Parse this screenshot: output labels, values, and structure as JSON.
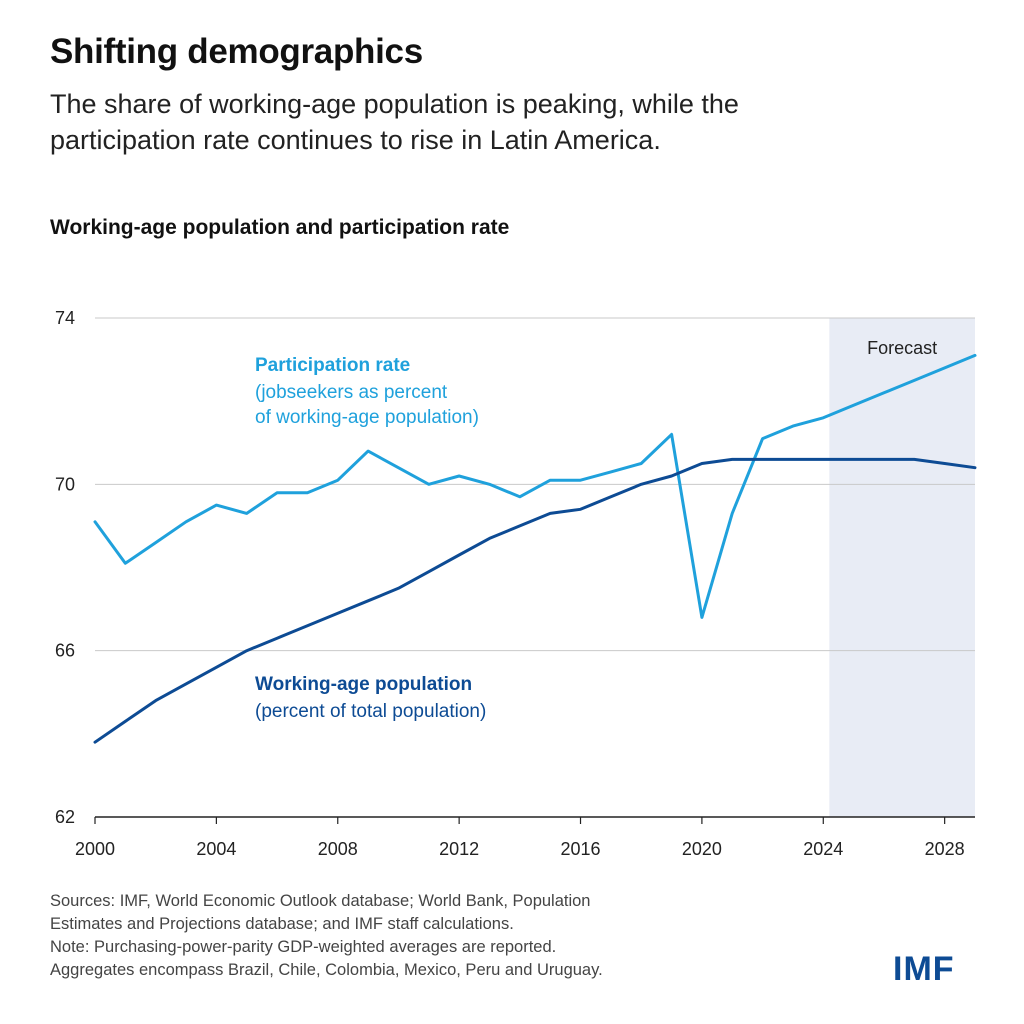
{
  "header": {
    "title": "Shifting demographics",
    "subtitle_line1": "The share of working-age population is peaking, while the",
    "subtitle_line2": "participation rate continues to rise in Latin America."
  },
  "chart_data": {
    "type": "line",
    "title": "Working-age population and participation rate",
    "xlabel": "",
    "ylabel": "",
    "xlim": [
      2000,
      2029
    ],
    "ylim": [
      62,
      74
    ],
    "x_ticks": [
      2000,
      2004,
      2008,
      2012,
      2016,
      2020,
      2024,
      2028
    ],
    "y_ticks": [
      62,
      66,
      70,
      74
    ],
    "grid": true,
    "forecast": {
      "label": "Forecast",
      "start": 2024.2,
      "end": 2029
    },
    "x": [
      2000,
      2001,
      2002,
      2003,
      2004,
      2005,
      2006,
      2007,
      2008,
      2009,
      2010,
      2011,
      2012,
      2013,
      2014,
      2015,
      2016,
      2017,
      2018,
      2019,
      2020,
      2021,
      2022,
      2023,
      2024,
      2025,
      2026,
      2027,
      2028,
      2029
    ],
    "series": [
      {
        "name": "Participation rate",
        "note": "(jobseekers as percent",
        "note2": "of working-age population)",
        "color": "#1fa1dc",
        "values": [
          69.1,
          68.1,
          68.6,
          69.1,
          69.5,
          69.3,
          69.8,
          69.8,
          70.1,
          70.8,
          70.4,
          70.0,
          70.2,
          70.0,
          69.7,
          70.1,
          70.1,
          70.3,
          70.5,
          71.2,
          66.8,
          69.3,
          71.1,
          71.4,
          71.6,
          71.9,
          72.2,
          72.5,
          72.8,
          73.1
        ]
      },
      {
        "name": "Working-age population",
        "note": "(percent of total population)",
        "color": "#0d4b94",
        "values": [
          63.8,
          64.3,
          64.8,
          65.2,
          65.6,
          66.0,
          66.3,
          66.6,
          66.9,
          67.2,
          67.5,
          67.9,
          68.3,
          68.7,
          69.0,
          69.3,
          69.4,
          69.7,
          70.0,
          70.2,
          70.5,
          70.6,
          70.6,
          70.6,
          70.6,
          70.6,
          70.6,
          70.6,
          70.5,
          70.4
        ]
      }
    ]
  },
  "notes": {
    "line1": "Sources: IMF, World Economic Outlook database; World Bank, Population",
    "line2": "Estimates and Projections database; and IMF staff calculations.",
    "line3": "Note: Purchasing-power-parity GDP-weighted averages are reported.",
    "line4": "Aggregates encompass Brazil, Chile, Colombia, Mexico, Peru and  Uruguay."
  },
  "logo": {
    "text": "IMF",
    "color": "#0d4b94"
  }
}
